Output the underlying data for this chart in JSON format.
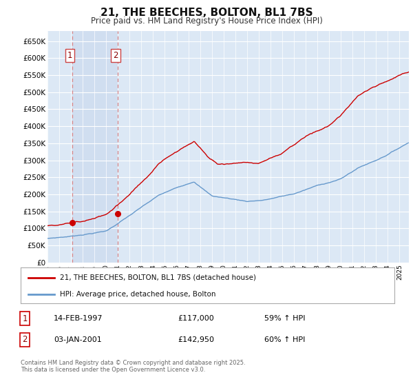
{
  "title": "21, THE BEECHES, BOLTON, BL1 7BS",
  "subtitle": "Price paid vs. HM Land Registry's House Price Index (HPI)",
  "bg_color": "#ffffff",
  "plot_bg_color": "#dce8f5",
  "highlight_bg": "#dce8f8",
  "grid_color": "#ffffff",
  "ylim": [
    0,
    680000
  ],
  "yticks": [
    0,
    50000,
    100000,
    150000,
    200000,
    250000,
    300000,
    350000,
    400000,
    450000,
    500000,
    550000,
    600000,
    650000
  ],
  "ytick_labels": [
    "£0",
    "£50K",
    "£100K",
    "£150K",
    "£200K",
    "£250K",
    "£300K",
    "£350K",
    "£400K",
    "£450K",
    "£500K",
    "£550K",
    "£600K",
    "£650K"
  ],
  "sale1_date": "14-FEB-1997",
  "sale1_price": 117000,
  "sale1_hpi": "59% ↑ HPI",
  "sale1_x": 1997.12,
  "sale2_date": "03-JAN-2001",
  "sale2_price": 142950,
  "sale2_hpi": "60% ↑ HPI",
  "sale2_x": 2001.01,
  "legend_line1": "21, THE BEECHES, BOLTON, BL1 7BS (detached house)",
  "legend_line2": "HPI: Average price, detached house, Bolton",
  "footer": "Contains HM Land Registry data © Crown copyright and database right 2025.\nThis data is licensed under the Open Government Licence v3.0.",
  "red_color": "#cc0000",
  "blue_color": "#6699cc",
  "dashed_color": "#dd8888"
}
